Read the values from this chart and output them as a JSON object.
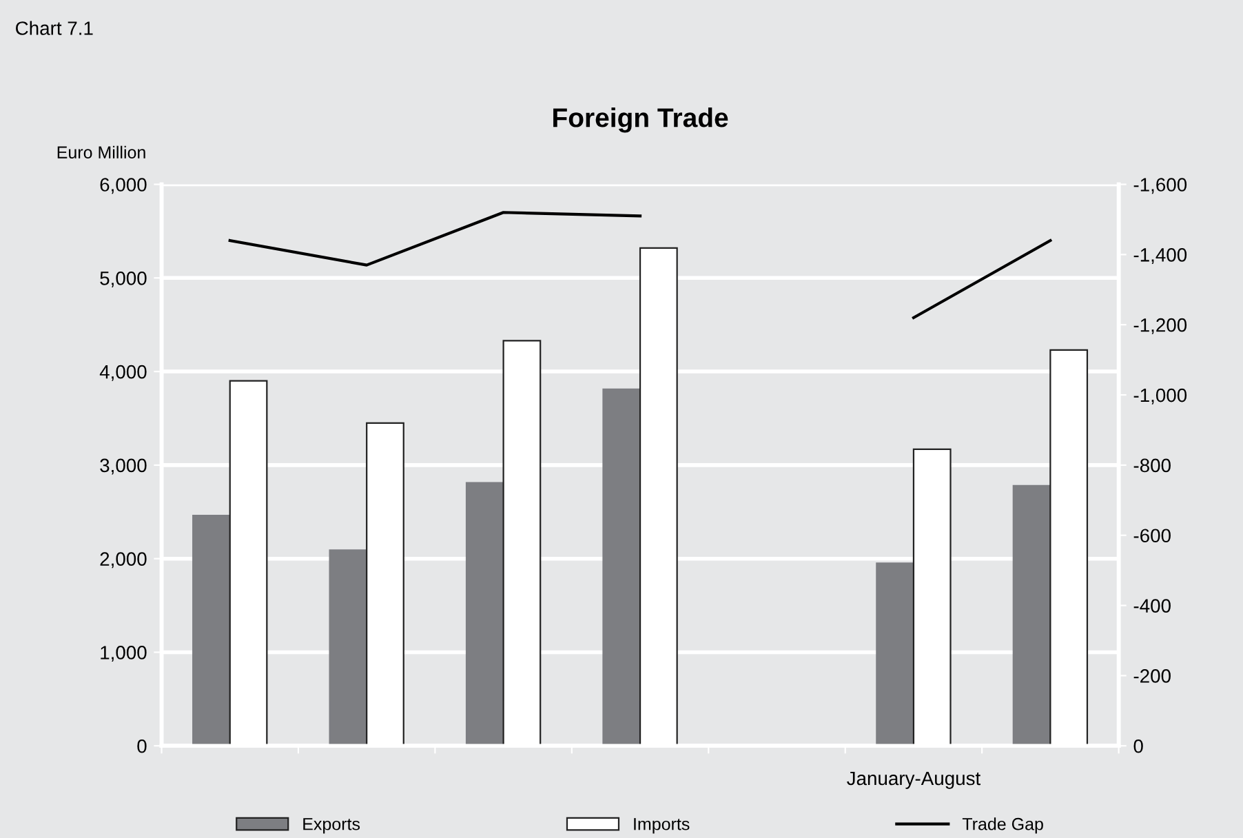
{
  "chart_data": {
    "type": "bar",
    "title": "Foreign Trade",
    "ylabel": "Euro Million",
    "annotations": [
      "Chart 7.1",
      "January-August"
    ],
    "categories": [
      null,
      null,
      null,
      null,
      null,
      null,
      null
    ],
    "series": [
      {
        "name": "Exports",
        "color": "#7d7e82",
        "values": [
          2460,
          2090,
          2810,
          3810,
          null,
          1950,
          2780
        ]
      },
      {
        "name": "Imports",
        "color": "#ffffff",
        "values": [
          3900,
          3450,
          4330,
          5320,
          null,
          3170,
          4230
        ]
      },
      {
        "name": "Trade Gap",
        "type": "line",
        "axis": "y2",
        "color": "#000000",
        "values": [
          -1440,
          -1370,
          -1520,
          -1510,
          null,
          -1220,
          -1440
        ]
      }
    ],
    "ylim": [
      0,
      6000
    ],
    "yticks": [
      0,
      {
        "value": 1000,
        "label": "1,000"
      },
      {
        "value": 2000,
        "label": "2,000"
      },
      {
        "value": 3000,
        "label": "3,000"
      },
      {
        "value": 4000,
        "label": "4,000"
      },
      {
        "value": 5000,
        "label": "5,000"
      },
      {
        "value": 6000,
        "label": "6,000"
      }
    ],
    "y2lim": [
      0,
      -1600
    ],
    "y2ticks": [
      0,
      -200,
      -400,
      -600,
      -800,
      {
        "value": -1000,
        "label": "-1,000"
      },
      {
        "value": -1200,
        "label": "-1,200"
      },
      {
        "value": -1400,
        "label": "-1,400"
      },
      {
        "value": -1600,
        "label": "-1,600"
      }
    ],
    "grid": "y",
    "legend": "bottom",
    "marker": "none",
    "line_style": "solid"
  }
}
